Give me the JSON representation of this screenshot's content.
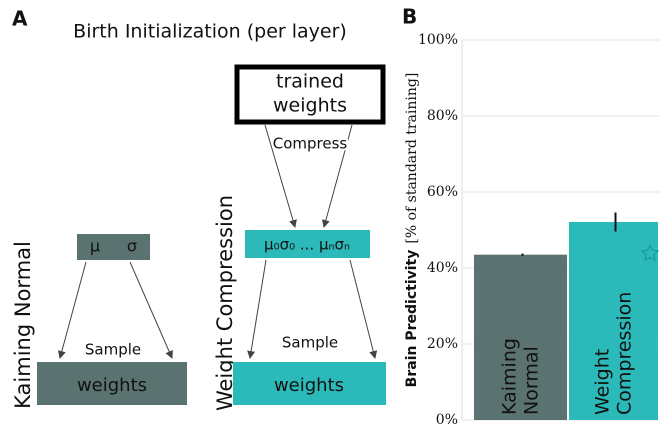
{
  "diagram": {
    "panel_label": "A",
    "title": "Birth Initialization (per layer)",
    "left": {
      "label": "Kaiming Normal",
      "mu": "μ",
      "sigma": "σ",
      "sample": "Sample",
      "output": "weights"
    },
    "right": {
      "label": "Weight Compression",
      "source_line1": "trained",
      "source_line2": "weights",
      "compress": "Compress",
      "params": "μ₀σ₀ ... μₙσₙ",
      "sample": "Sample",
      "output": "weights"
    }
  },
  "chart_data": {
    "type": "bar",
    "panel_label": "B",
    "ylabel": "Brain Predictivity",
    "ylabel_unit": "[% of standard training]",
    "categories": [
      "Kaiming Normal",
      "Weight Compression"
    ],
    "values": [
      43.5,
      52.1
    ],
    "errors": [
      0.3,
      2.5
    ],
    "colors": [
      "#5b7370",
      "#2bb9b9"
    ],
    "ylim": [
      0,
      100
    ],
    "yticks": [
      {
        "value": 0,
        "label": "0%"
      },
      {
        "value": 20,
        "label": "20%"
      },
      {
        "value": 40,
        "label": "40%"
      },
      {
        "value": 60,
        "label": "60%"
      },
      {
        "value": 80,
        "label": "80%"
      },
      {
        "value": 100,
        "label": "100%"
      }
    ],
    "grid": true
  }
}
